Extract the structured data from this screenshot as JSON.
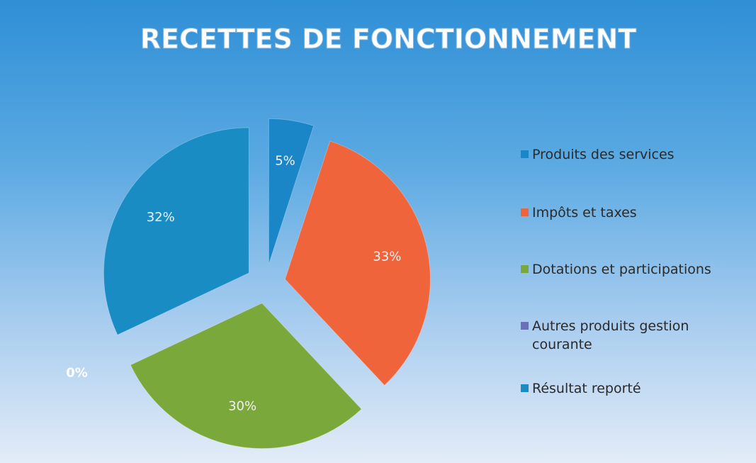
{
  "chart_data": {
    "type": "pie",
    "title": "RECETTES DE FONCTIONNEMENT",
    "categories": [
      "Produits des services",
      "Impôts et taxes",
      "Dotations et participations",
      "Autres produits gestion courante",
      "Résultat reporté"
    ],
    "values": [
      5,
      33,
      30,
      0,
      32
    ],
    "value_labels": [
      "5%",
      "33%",
      "30%",
      "0%",
      "32%"
    ],
    "colors": [
      "#1a86c8",
      "#f0643c",
      "#7aa83a",
      "#6a6fb8",
      "#1a8cc4"
    ],
    "legend": "right"
  }
}
